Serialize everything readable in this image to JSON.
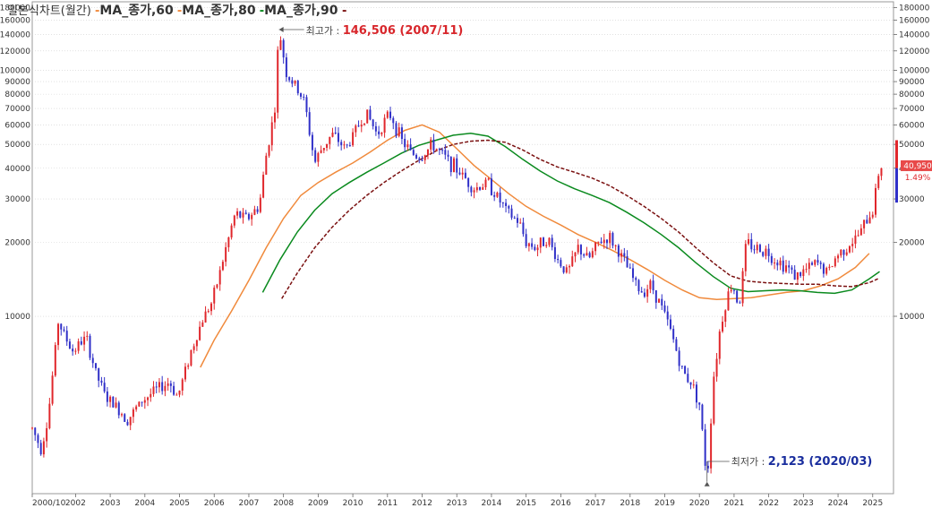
{
  "chart_data": {
    "type": "candlestick",
    "title": "일본식차트(월간)",
    "legend": [
      {
        "name": "MA_종가,60",
        "color": "#f08a3c"
      },
      {
        "name": "MA_종가,80",
        "color": "#0a8a1e"
      },
      {
        "name": "MA_종가,90",
        "color": "#7a1010"
      }
    ],
    "y_scale": "log",
    "ylim": [
      1900,
      190000
    ],
    "y_ticks": [
      10000,
      20000,
      30000,
      40000,
      50000,
      60000,
      70000,
      80000,
      90000,
      100000,
      120000,
      140000,
      160000,
      180000
    ],
    "y_tick_labels": [
      "10000",
      "20000",
      "30000",
      "40000",
      "50000",
      "60000",
      "70000",
      "80000",
      "90000",
      "100000",
      "120000",
      "140000",
      "160000",
      "180000"
    ],
    "x_labels": [
      "2000/10",
      "2002",
      "2003",
      "2004",
      "2005",
      "2006",
      "2007",
      "2008",
      "2009",
      "2010",
      "2011",
      "2012",
      "2013",
      "2014",
      "2015",
      "2016",
      "2017",
      "2018",
      "2019",
      "2020",
      "2021",
      "2022",
      "2023",
      "2024",
      "2025"
    ],
    "x_label_years": [
      2000.75,
      2002,
      2003,
      2004,
      2005,
      2006,
      2007,
      2008,
      2009,
      2010,
      2011,
      2012,
      2013,
      2014,
      2015,
      2016,
      2017,
      2018,
      2019,
      2020,
      2021,
      2022,
      2023,
      2024,
      2025
    ],
    "price_path": [
      [
        2000.75,
        3500
      ],
      [
        2001.0,
        2900
      ],
      [
        2001.2,
        3800
      ],
      [
        2001.5,
        9500
      ],
      [
        2001.9,
        7200
      ],
      [
        2002.3,
        8200
      ],
      [
        2002.6,
        5800
      ],
      [
        2002.9,
        4600
      ],
      [
        2003.1,
        4400
      ],
      [
        2003.5,
        3800
      ],
      [
        2003.9,
        4500
      ],
      [
        2004.3,
        5000
      ],
      [
        2004.7,
        5400
      ],
      [
        2004.95,
        4700
      ],
      [
        2005.3,
        7000
      ],
      [
        2005.7,
        10000
      ],
      [
        2005.95,
        11500
      ],
      [
        2006.3,
        18000
      ],
      [
        2006.6,
        26000
      ],
      [
        2006.95,
        25000
      ],
      [
        2007.3,
        28000
      ],
      [
        2007.5,
        45000
      ],
      [
        2007.75,
        70000
      ],
      [
        2007.87,
        146506
      ],
      [
        2008.1,
        95000
      ],
      [
        2008.3,
        88000
      ],
      [
        2008.6,
        75000
      ],
      [
        2008.9,
        42000
      ],
      [
        2009.1,
        48000
      ],
      [
        2009.4,
        55000
      ],
      [
        2009.8,
        48000
      ],
      [
        2010.1,
        58000
      ],
      [
        2010.4,
        67000
      ],
      [
        2010.7,
        55000
      ],
      [
        2010.9,
        62000
      ],
      [
        2011.1,
        66000
      ],
      [
        2011.4,
        52000
      ],
      [
        2011.7,
        46000
      ],
      [
        2011.95,
        44000
      ],
      [
        2012.3,
        50000
      ],
      [
        2012.6,
        45000
      ],
      [
        2012.9,
        41000
      ],
      [
        2013.2,
        37000
      ],
      [
        2013.5,
        33000
      ],
      [
        2013.9,
        35000
      ],
      [
        2014.2,
        30000
      ],
      [
        2014.5,
        26000
      ],
      [
        2014.8,
        24000
      ],
      [
        2015.0,
        20000
      ],
      [
        2015.3,
        19000
      ],
      [
        2015.6,
        21000
      ],
      [
        2015.9,
        17000
      ],
      [
        2016.2,
        15000
      ],
      [
        2016.5,
        19000
      ],
      [
        2016.8,
        17000
      ],
      [
        2017.1,
        20000
      ],
      [
        2017.4,
        21000
      ],
      [
        2017.7,
        18000
      ],
      [
        2018.0,
        15000
      ],
      [
        2018.3,
        12500
      ],
      [
        2018.6,
        13500
      ],
      [
        2018.9,
        11000
      ],
      [
        2019.2,
        8500
      ],
      [
        2019.5,
        6000
      ],
      [
        2019.8,
        5300
      ],
      [
        2020.0,
        4400
      ],
      [
        2020.22,
        2123
      ],
      [
        2020.4,
        5500
      ],
      [
        2020.6,
        9000
      ],
      [
        2020.8,
        12000
      ],
      [
        2020.95,
        13500
      ],
      [
        2021.15,
        11000
      ],
      [
        2021.35,
        20000
      ],
      [
        2021.6,
        19000
      ],
      [
        2021.9,
        18500
      ],
      [
        2022.2,
        17000
      ],
      [
        2022.5,
        16000
      ],
      [
        2022.8,
        14500
      ],
      [
        2023.1,
        15500
      ],
      [
        2023.4,
        16500
      ],
      [
        2023.7,
        15000
      ],
      [
        2023.95,
        17500
      ],
      [
        2024.2,
        19000
      ],
      [
        2024.5,
        20500
      ],
      [
        2024.8,
        24000
      ],
      [
        2025.0,
        27000
      ],
      [
        2025.2,
        40950
      ]
    ],
    "ma_60": [
      [
        2005.6,
        6200
      ],
      [
        2006.0,
        8000
      ],
      [
        2006.5,
        10500
      ],
      [
        2007.0,
        14000
      ],
      [
        2007.5,
        19000
      ],
      [
        2008.0,
        25000
      ],
      [
        2008.5,
        31000
      ],
      [
        2009.0,
        35000
      ],
      [
        2009.5,
        38500
      ],
      [
        2010.0,
        42000
      ],
      [
        2010.5,
        46500
      ],
      [
        2011.0,
        52000
      ],
      [
        2011.5,
        57000
      ],
      [
        2012.0,
        60000
      ],
      [
        2012.5,
        56000
      ],
      [
        2013.0,
        48000
      ],
      [
        2013.5,
        41000
      ],
      [
        2014.0,
        36000
      ],
      [
        2014.5,
        31500
      ],
      [
        2015.0,
        28000
      ],
      [
        2015.5,
        25500
      ],
      [
        2016.0,
        23500
      ],
      [
        2016.5,
        21500
      ],
      [
        2017.0,
        20000
      ],
      [
        2017.5,
        18500
      ],
      [
        2018.0,
        17000
      ],
      [
        2018.5,
        15500
      ],
      [
        2019.0,
        14000
      ],
      [
        2019.5,
        12800
      ],
      [
        2020.0,
        11900
      ],
      [
        2020.5,
        11700
      ],
      [
        2021.0,
        11800
      ],
      [
        2021.5,
        11900
      ],
      [
        2022.0,
        12200
      ],
      [
        2022.5,
        12500
      ],
      [
        2023.0,
        12700
      ],
      [
        2023.5,
        13300
      ],
      [
        2024.0,
        14200
      ],
      [
        2024.5,
        15800
      ],
      [
        2024.9,
        18000
      ]
    ],
    "ma_80": [
      [
        2007.4,
        12500
      ],
      [
        2007.9,
        17000
      ],
      [
        2008.4,
        22000
      ],
      [
        2008.9,
        27000
      ],
      [
        2009.4,
        31500
      ],
      [
        2009.9,
        35000
      ],
      [
        2010.4,
        38500
      ],
      [
        2010.9,
        42000
      ],
      [
        2011.4,
        46000
      ],
      [
        2011.9,
        49500
      ],
      [
        2012.4,
        52000
      ],
      [
        2012.9,
        54500
      ],
      [
        2013.4,
        55500
      ],
      [
        2013.9,
        54000
      ],
      [
        2014.4,
        49000
      ],
      [
        2014.9,
        43500
      ],
      [
        2015.4,
        39000
      ],
      [
        2015.9,
        35500
      ],
      [
        2016.4,
        33000
      ],
      [
        2016.9,
        31000
      ],
      [
        2017.4,
        29000
      ],
      [
        2017.9,
        26500
      ],
      [
        2018.4,
        24000
      ],
      [
        2018.9,
        21500
      ],
      [
        2019.4,
        19000
      ],
      [
        2019.9,
        16500
      ],
      [
        2020.4,
        14500
      ],
      [
        2020.9,
        13000
      ],
      [
        2021.4,
        12600
      ],
      [
        2021.9,
        12700
      ],
      [
        2022.4,
        12800
      ],
      [
        2022.9,
        12700
      ],
      [
        2023.4,
        12500
      ],
      [
        2023.9,
        12400
      ],
      [
        2024.4,
        12800
      ],
      [
        2024.9,
        14200
      ],
      [
        2025.2,
        15200
      ]
    ],
    "ma_90": [
      [
        2007.95,
        11800
      ],
      [
        2008.4,
        15000
      ],
      [
        2008.9,
        19000
      ],
      [
        2009.4,
        23000
      ],
      [
        2009.9,
        27000
      ],
      [
        2010.4,
        31000
      ],
      [
        2010.9,
        35000
      ],
      [
        2011.4,
        39000
      ],
      [
        2011.9,
        43000
      ],
      [
        2012.4,
        47000
      ],
      [
        2012.9,
        50000
      ],
      [
        2013.4,
        51500
      ],
      [
        2013.9,
        52000
      ],
      [
        2014.4,
        51000
      ],
      [
        2014.9,
        47500
      ],
      [
        2015.4,
        43500
      ],
      [
        2015.9,
        40500
      ],
      [
        2016.4,
        38500
      ],
      [
        2016.9,
        36500
      ],
      [
        2017.4,
        34000
      ],
      [
        2017.9,
        31000
      ],
      [
        2018.4,
        28000
      ],
      [
        2018.9,
        25000
      ],
      [
        2019.4,
        22000
      ],
      [
        2019.9,
        19000
      ],
      [
        2020.4,
        16500
      ],
      [
        2020.9,
        14600
      ],
      [
        2021.4,
        13900
      ],
      [
        2021.9,
        13700
      ],
      [
        2022.4,
        13600
      ],
      [
        2022.9,
        13500
      ],
      [
        2023.4,
        13500
      ],
      [
        2023.9,
        13300
      ],
      [
        2024.4,
        13200
      ],
      [
        2024.9,
        13700
      ],
      [
        2025.2,
        14300
      ]
    ],
    "annotations": [
      {
        "label": "최고가 : ",
        "value": "146,506 (2007/11)",
        "x": 2007.87,
        "y": 146506,
        "color": "#d8262b"
      },
      {
        "label": "최저가 : ",
        "value": "2,123 (2020/03)",
        "x": 2020.22,
        "y": 2123,
        "color": "#1a2e9e"
      }
    ],
    "last_value_label": "40,950",
    "last_change_label": "1.49%"
  },
  "colors": {
    "up": "#e0272c",
    "down": "#3030c8",
    "grid": "#cfcfcf",
    "axis_text": "#333333"
  }
}
